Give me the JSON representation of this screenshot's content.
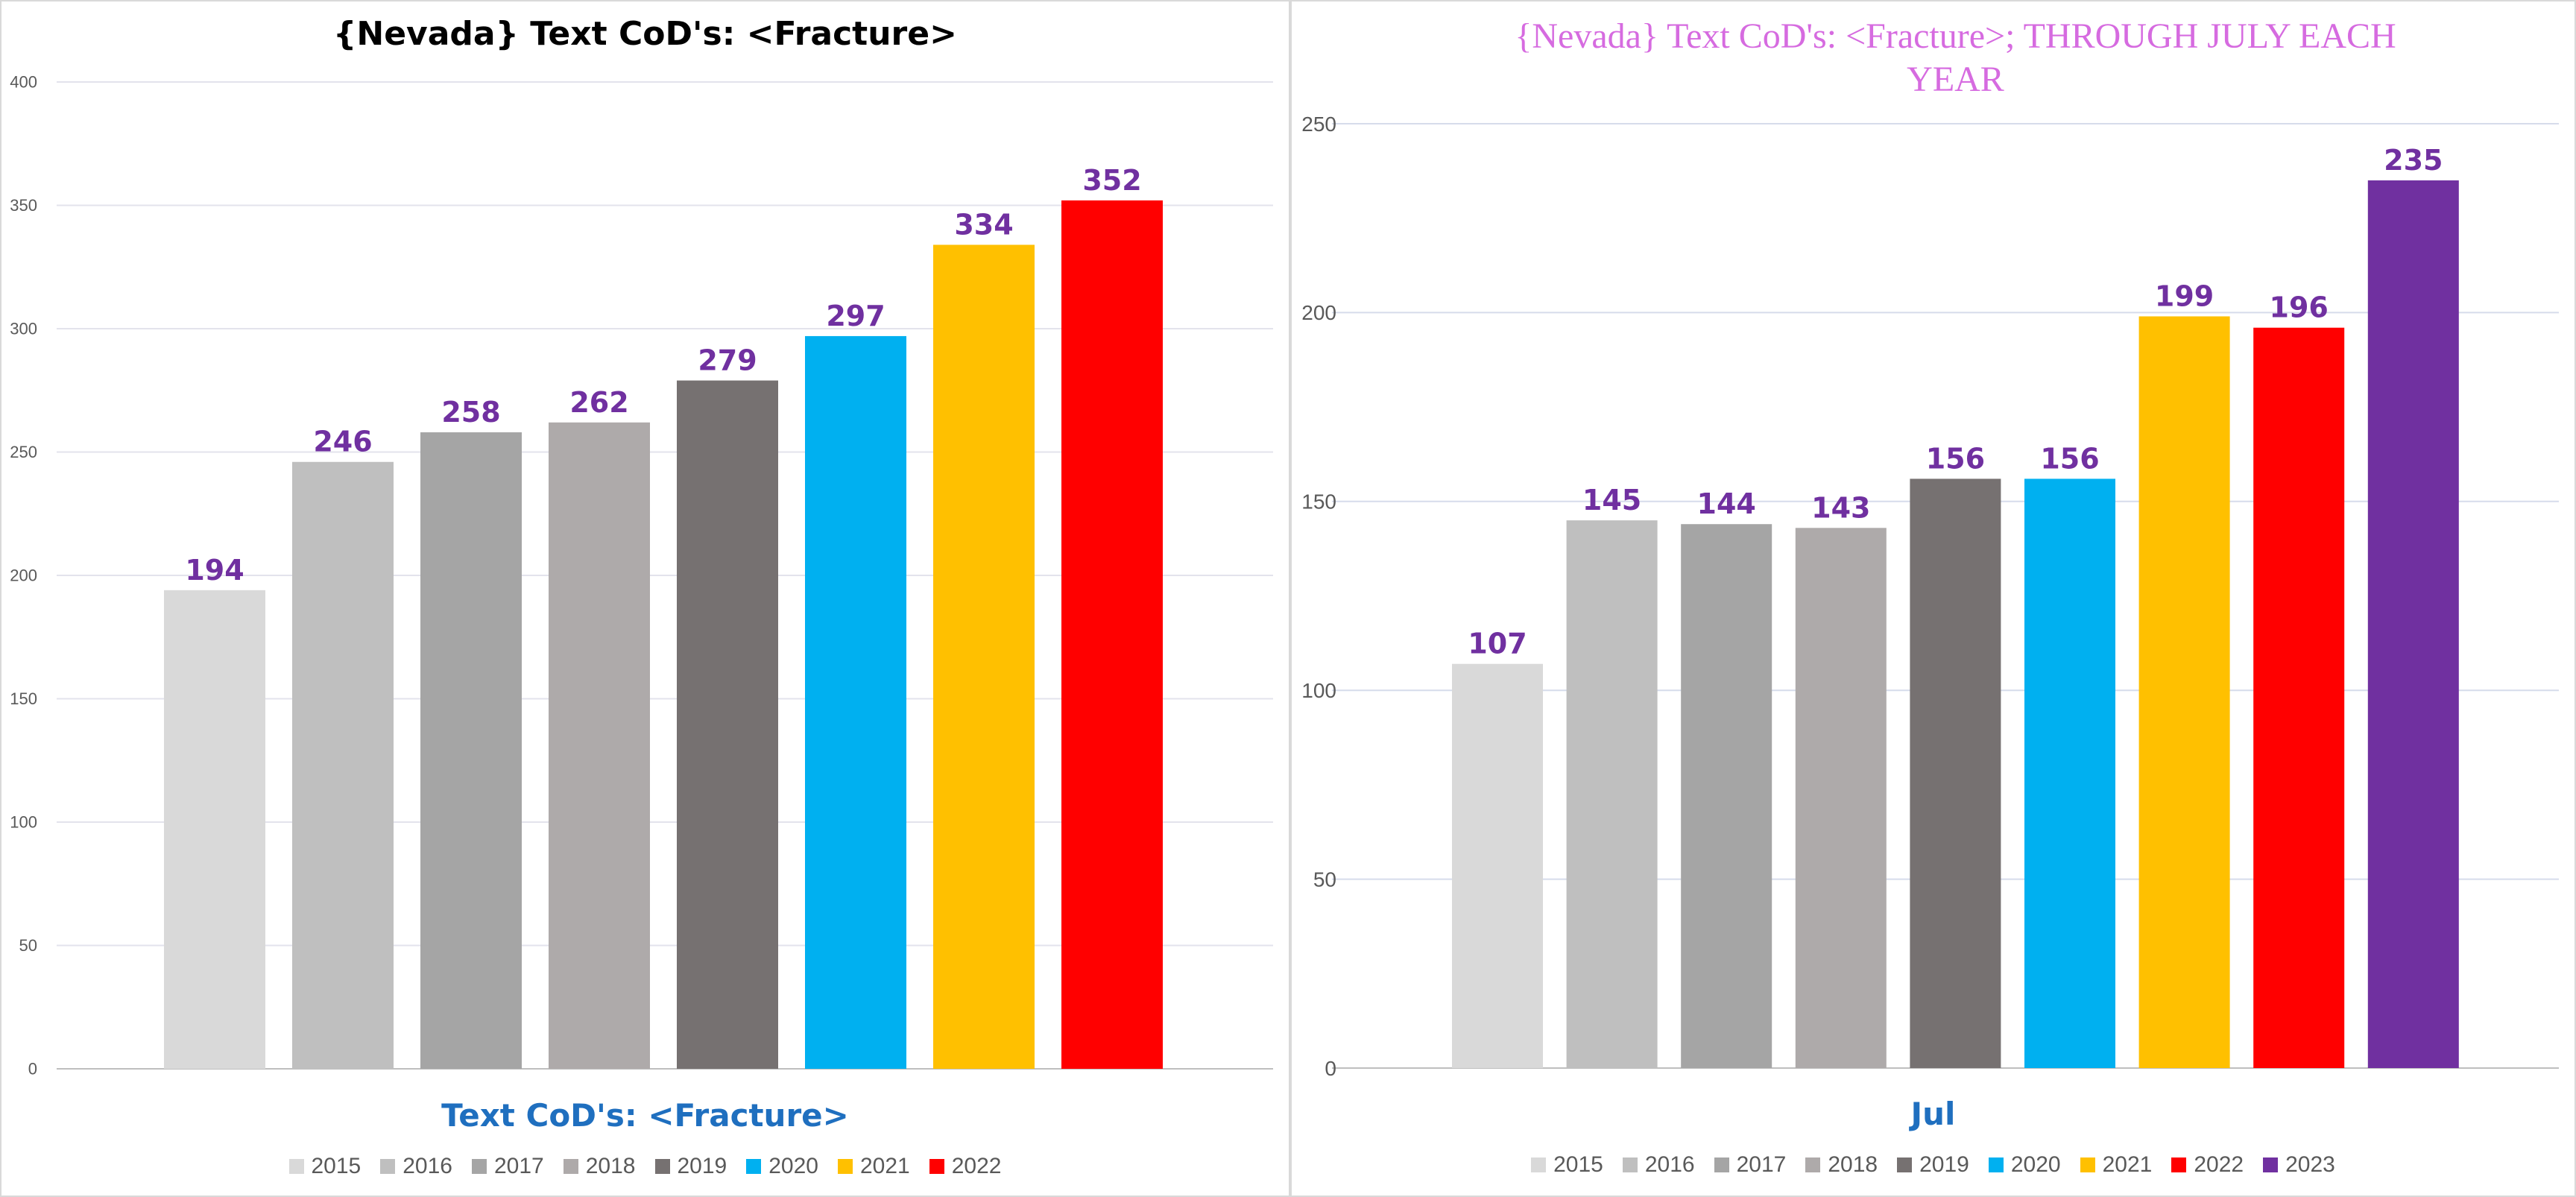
{
  "chart_data": [
    {
      "type": "bar",
      "title": "{Nevada}  Text CoD's: <Fracture>",
      "xlabel": "Text CoD's: <Fracture>",
      "ylabel": "",
      "ylim": [
        0,
        400
      ],
      "yticks": [
        0,
        50,
        100,
        150,
        200,
        250,
        300,
        350,
        400
      ],
      "grid": true,
      "legend_position": "bottom",
      "series": [
        {
          "name": "2015",
          "values": [
            194
          ],
          "color": "#d9d9d9"
        },
        {
          "name": "2016",
          "values": [
            246
          ],
          "color": "#bfbfbf"
        },
        {
          "name": "2017",
          "values": [
            258
          ],
          "color": "#a5a5a5"
        },
        {
          "name": "2018",
          "values": [
            262
          ],
          "color": "#aeaaaa"
        },
        {
          "name": "2019",
          "values": [
            279
          ],
          "color": "#767171"
        },
        {
          "name": "2020",
          "values": [
            297
          ],
          "color": "#00b0f0"
        },
        {
          "name": "2021",
          "values": [
            334
          ],
          "color": "#ffc000"
        },
        {
          "name": "2022",
          "values": [
            352
          ],
          "color": "#ff0000"
        }
      ],
      "label_color": "#7030a0"
    },
    {
      "type": "bar",
      "title": "{Nevada}   Text CoD's: <Fracture>; THROUGH JULY EACH YEAR",
      "xlabel": "Jul",
      "ylabel": "",
      "ylim": [
        0,
        250
      ],
      "yticks": [
        0,
        50,
        100,
        150,
        200,
        250
      ],
      "grid": true,
      "legend_position": "bottom",
      "series": [
        {
          "name": "2015",
          "values": [
            107
          ],
          "color": "#d9d9d9"
        },
        {
          "name": "2016",
          "values": [
            145
          ],
          "color": "#bfbfbf"
        },
        {
          "name": "2017",
          "values": [
            144
          ],
          "color": "#a5a5a5"
        },
        {
          "name": "2018",
          "values": [
            143
          ],
          "color": "#aeaaaa"
        },
        {
          "name": "2019",
          "values": [
            156
          ],
          "color": "#767171"
        },
        {
          "name": "2020",
          "values": [
            156
          ],
          "color": "#00b0f0"
        },
        {
          "name": "2021",
          "values": [
            199
          ],
          "color": "#ffc000"
        },
        {
          "name": "2022",
          "values": [
            196
          ],
          "color": "#ff0000"
        },
        {
          "name": "2023",
          "values": [
            235
          ],
          "color": "#7030a0"
        }
      ],
      "label_color": "#7030a0"
    }
  ]
}
